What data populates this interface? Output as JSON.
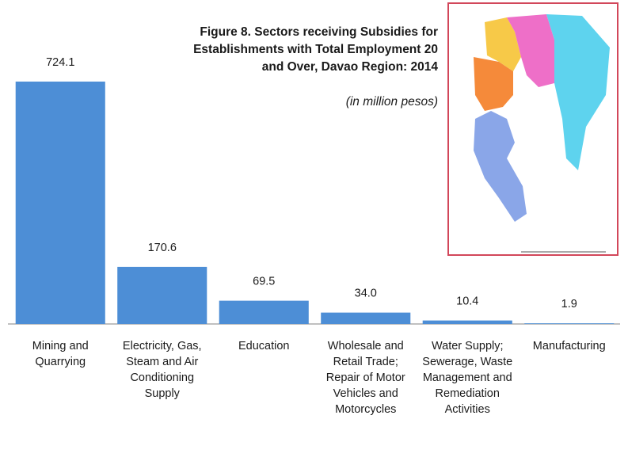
{
  "chart_data": {
    "type": "bar",
    "title": "Figure 8. Sectors receiving Subsidies for Establishments with Total Employment 20 and Over, Davao Region: 2014",
    "subtitle": "(in million pesos)",
    "categories": [
      "Mining and Quarrying",
      "Electricity, Gas, Steam and Air Conditioning Supply",
      "Education",
      "Wholesale and Retail Trade; Repair of Motor Vehicles and Motorcycles",
      "Water Supply; Sewerage, Waste Management and Remediation Activities",
      "Manufacturing"
    ],
    "values": [
      724.1,
      170.6,
      69.5,
      34.0,
      10.4,
      1.9
    ],
    "value_labels": [
      "724.1",
      "170.6",
      "69.5",
      "34.0",
      "10.4",
      "1.9"
    ],
    "color": "#4d8ed6"
  }
}
